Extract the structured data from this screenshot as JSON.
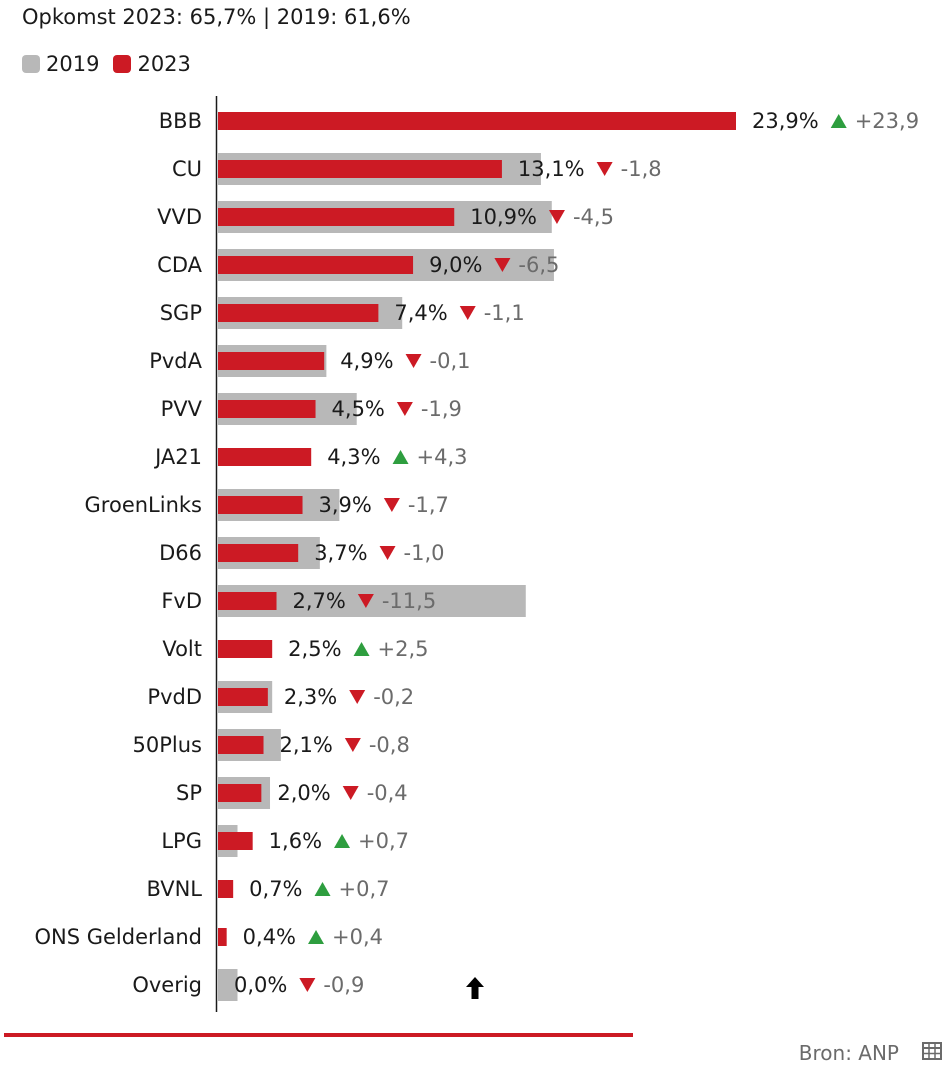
{
  "subtitle": "Opkomst 2023: 65,7% | 2019: 61,6%",
  "source": "Bron: ANP",
  "colors": {
    "series_2019": "#b8b8b8",
    "series_2023": "#cc1a24",
    "up": "#2e9e3f",
    "down": "#cc1a24",
    "change_text": "#6b6b6b"
  },
  "icons": {
    "table": "table-icon",
    "cursor": "arrow-up-icon"
  },
  "chart_data": {
    "type": "bar",
    "orientation": "horizontal",
    "legend": {
      "position": "top-left",
      "entries": [
        "2019",
        "2023"
      ]
    },
    "grid": false,
    "series": [
      {
        "name": "2019",
        "values": [
          0,
          14.9,
          15.4,
          15.5,
          8.5,
          5.0,
          6.4,
          0,
          5.6,
          4.7,
          14.2,
          0,
          2.5,
          2.9,
          2.4,
          0.9,
          0,
          0,
          0.9
        ]
      },
      {
        "name": "2023",
        "values": [
          23.9,
          13.1,
          10.9,
          9.0,
          7.4,
          4.9,
          4.5,
          4.3,
          3.9,
          3.7,
          2.7,
          2.5,
          2.3,
          2.1,
          2.0,
          1.6,
          0.7,
          0.4,
          0.0
        ]
      }
    ],
    "categories": [
      "BBB",
      "CU",
      "VVD",
      "CDA",
      "SGP",
      "PvdA",
      "PVV",
      "JA21",
      "GroenLinks",
      "D66",
      "FvD",
      "Volt",
      "PvdD",
      "50Plus",
      "SP",
      "LPG",
      "BVNL",
      "ONS Gelderland",
      "Overig"
    ],
    "labels_2023": [
      "23,9%",
      "13,1%",
      "10,9%",
      "9,0%",
      "7,4%",
      "4,9%",
      "4,5%",
      "4,3%",
      "3,9%",
      "3,7%",
      "2,7%",
      "2,5%",
      "2,3%",
      "2,1%",
      "2,0%",
      "1,6%",
      "0,7%",
      "0,4%",
      "0,0%"
    ],
    "changes": [
      "+23,9",
      "-1,8",
      "-4,5",
      "-6,5",
      "-1,1",
      "-0,1",
      "-1,9",
      "+4,3",
      "-1,7",
      "-1,0",
      "-11,5",
      "+2,5",
      "-0,2",
      "-0,8",
      "-0,4",
      "+0,7",
      "+0,7",
      "+0,4",
      "-0,9"
    ],
    "directions": [
      "up",
      "down",
      "down",
      "down",
      "down",
      "down",
      "down",
      "up",
      "down",
      "down",
      "down",
      "up",
      "down",
      "down",
      "down",
      "up",
      "up",
      "up",
      "down"
    ],
    "xlim": [
      0,
      23.9
    ]
  }
}
